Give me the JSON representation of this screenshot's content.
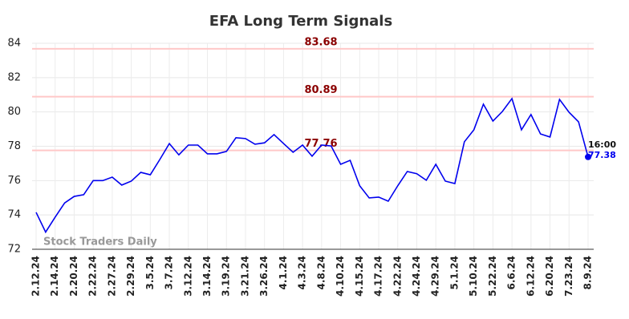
{
  "chart_data": {
    "type": "line",
    "title": "EFA Long Term Signals",
    "watermark": "Stock Traders Daily",
    "categories": [
      "2.12.24",
      null,
      "2.14.24",
      null,
      "2.20.24",
      null,
      "2.22.24",
      null,
      "2.27.24",
      null,
      "2.29.24",
      null,
      "3.5.24",
      null,
      "3.7.24",
      null,
      "3.12.24",
      null,
      "3.14.24",
      null,
      "3.19.24",
      null,
      "3.21.24",
      null,
      "3.26.24",
      null,
      "4.1.24",
      null,
      "4.3.24",
      null,
      "4.8.24",
      null,
      "4.10.24",
      null,
      "4.15.24",
      null,
      "4.17.24",
      null,
      "4.22.24",
      null,
      "4.24.24",
      null,
      "4.29.24",
      null,
      "5.1.24",
      null,
      "5.10.24",
      null,
      "5.22.24",
      null,
      "6.6.24",
      null,
      "6.12.24",
      null,
      "6.20.24",
      null,
      "7.23.24",
      null,
      "8.9.24"
    ],
    "values": [
      74.15,
      73.0,
      73.87,
      74.7,
      75.08,
      75.18,
      76.0,
      76.0,
      76.2,
      75.74,
      75.97,
      76.48,
      76.34,
      77.23,
      78.16,
      77.5,
      78.07,
      78.07,
      77.56,
      77.56,
      77.7,
      78.5,
      78.45,
      78.12,
      78.2,
      78.68,
      78.16,
      77.65,
      78.07,
      77.42,
      78.07,
      78.02,
      76.95,
      77.18,
      75.7,
      74.99,
      75.04,
      74.8,
      75.7,
      76.53,
      76.4,
      76.02,
      76.95,
      75.97,
      75.83,
      78.26,
      78.96,
      80.45,
      79.47,
      80.03,
      80.78,
      78.96,
      79.85,
      78.72,
      78.54,
      80.73,
      79.98,
      79.42,
      77.38
    ],
    "color": "#0000ee",
    "last_time": "16:00",
    "hlines": [
      83.68,
      80.89,
      77.76
    ],
    "hline_color": "#ffc8c8",
    "hline_text_color": "#8b0000",
    "ylim": [
      72,
      84
    ],
    "yticks": [
      72,
      74,
      76,
      78,
      80,
      82,
      84
    ],
    "grid": true
  }
}
